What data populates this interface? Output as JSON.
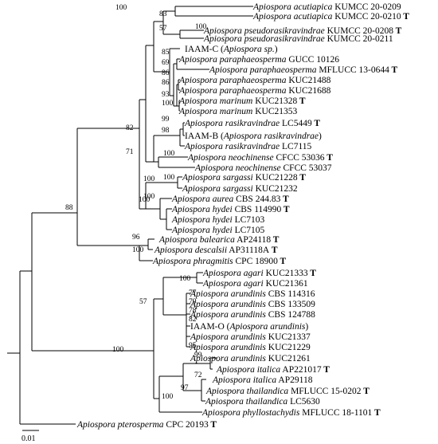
{
  "tree": {
    "leaves": [
      {
        "genus": "Apiospora",
        "epithet": "acutiapica",
        "strain": "KUMCC 20-0209",
        "type": false
      },
      {
        "genus": "Apiospora",
        "epithet": "acutiapica",
        "strain": "KUMCC 20-0210",
        "type": true
      },
      {
        "genus": "Apiospora",
        "epithet": "pseudorasikravindrae",
        "strain": "KUMCC 20-0208",
        "type": true
      },
      {
        "genus": "Apiospora",
        "epithet": "pseudorasikravindrae",
        "strain": "KUMCC 20-0211",
        "type": false
      },
      {
        "isolate": "IAAM-C",
        "paren": "Apiospora sp.",
        "highlight": "#a0522d"
      },
      {
        "genus": "Apiospora",
        "epithet": "paraphaeosperma",
        "strain": "GUCC 10126",
        "type": false
      },
      {
        "genus": "Apiospora",
        "epithet": "paraphaeosperma",
        "strain": "MFLUCC 13-0644",
        "type": true
      },
      {
        "genus": "Apiospora",
        "epithet": "paraphaeosperma",
        "strain": "KUC21488",
        "type": false
      },
      {
        "genus": "Apiospora",
        "epithet": "paraphaeosperma",
        "strain": "KUC21688",
        "type": false
      },
      {
        "genus": "Apiospora",
        "epithet": "marinum",
        "strain": "KUC21328",
        "type": true
      },
      {
        "genus": "Apiospora",
        "epithet": "marinum",
        "strain": "KUC21353",
        "type": false
      },
      {
        "genus": "Apiospora",
        "epithet": "rasikravindrae",
        "strain": "LC5449",
        "type": true
      },
      {
        "isolate": "IAAM-B",
        "paren": "Apiospora rasikravindrae",
        "highlight": "#c0392b"
      },
      {
        "genus": "Apiospora",
        "epithet": "rasikravindrae",
        "strain": "LC7115",
        "type": false
      },
      {
        "genus": "Apiospora",
        "epithet": "neochinense",
        "strain": "CFCC 53036",
        "type": true
      },
      {
        "genus": "Apiospora",
        "epithet": "neochinense",
        "strain": "CFCC 53037",
        "type": false
      },
      {
        "genus": "Apiospora",
        "epithet": "sargassi",
        "strain": "KUC21228",
        "type": true
      },
      {
        "genus": "Apiospora",
        "epithet": "sargassi",
        "strain": "KUC21232",
        "type": false
      },
      {
        "genus": "Apiospora",
        "epithet": "aurea",
        "strain": "CBS 244.83",
        "type": true
      },
      {
        "genus": "Apiospora",
        "epithet": "hydei",
        "strain": "CBS 114990",
        "type": true
      },
      {
        "genus": "Apiospora",
        "epithet": "hydei",
        "strain": "LC7103",
        "type": false
      },
      {
        "genus": "Apiospora",
        "epithet": "hydei",
        "strain": "LC7105",
        "type": false
      },
      {
        "genus": "Apiospora",
        "epithet": "balearica",
        "strain": "AP24118",
        "type": true
      },
      {
        "genus": "Apiospora",
        "epithet": "descalsii",
        "strain": "AP31118A",
        "type": true
      },
      {
        "genus": "Apiospora",
        "epithet": "phragmitis",
        "strain": "CPC 18900",
        "type": true
      },
      {
        "genus": "Apiospora",
        "epithet": "agari",
        "strain": "KUC21333",
        "type": true
      },
      {
        "genus": "Apiospora",
        "epithet": "agari",
        "strain": "KUC21361",
        "type": false
      },
      {
        "genus": "Apiospora",
        "epithet": "arundinis",
        "strain": "CBS 114316",
        "type": false
      },
      {
        "genus": "Apiospora",
        "epithet": "arundinis",
        "strain": "CBS 133509",
        "type": false
      },
      {
        "genus": "Apiospora",
        "epithet": "arundinis",
        "strain": "CBS 124788",
        "type": false
      },
      {
        "isolate": "IAAM-O",
        "paren": "Apiospora arundinis",
        "highlight": "#c0392b"
      },
      {
        "genus": "Apiospora",
        "epithet": "arundinis",
        "strain": "KUC21337",
        "type": false
      },
      {
        "genus": "Apiospora",
        "epithet": "arundinis",
        "strain": "KUC21229",
        "type": false
      },
      {
        "genus": "Apiospora",
        "epithet": "arundinis",
        "strain": "KUC21261",
        "type": false
      },
      {
        "genus": "Apiospora",
        "epithet": "italica",
        "strain": "AP221017",
        "type": true
      },
      {
        "genus": "Apiospora",
        "epithet": "italica",
        "strain": "AP29118",
        "type": false
      },
      {
        "genus": "Apiospora",
        "epithet": "thailandica",
        "strain": "MFLUCC 15-0202",
        "type": true
      },
      {
        "genus": "Apiospora",
        "epithet": "thailandica",
        "strain": "LC5630",
        "type": false
      },
      {
        "genus": "Apiospora",
        "epithet": "phyllostachydis",
        "strain": "MFLUCC 18-1101",
        "type": true
      },
      {
        "genus": "Apiospora",
        "epithet": "pterosperma",
        "strain": "CPC 20193",
        "type": true
      }
    ],
    "type_marker": "T",
    "bootstrap": [
      "100",
      "83",
      "57",
      "100",
      "85",
      "69",
      "86",
      "86",
      "93",
      "100",
      "99",
      "98",
      "82",
      "71",
      "100",
      "100",
      "100",
      "100",
      "88",
      "96",
      "100",
      "100",
      "57",
      "77",
      "79",
      "78",
      "82",
      "95",
      "100",
      "99",
      "72",
      "97",
      "100",
      "100"
    ],
    "scale_label": "0.01"
  }
}
